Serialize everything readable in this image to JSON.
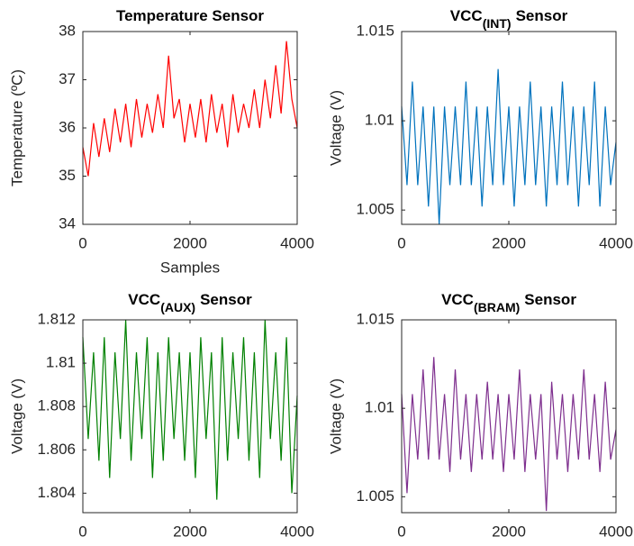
{
  "chart_data": [
    {
      "type": "line",
      "title": "Temperature Sensor",
      "xlabel": "Samples",
      "ylabel": "Temperature (ºC)",
      "xlim": [
        0,
        4000
      ],
      "xticks": [
        0,
        2000,
        4000
      ],
      "ylim": [
        34,
        38
      ],
      "yticks": [
        34,
        35,
        36,
        37,
        38
      ],
      "x": [
        0,
        100,
        200,
        300,
        400,
        500,
        600,
        700,
        800,
        900,
        1000,
        1100,
        1200,
        1300,
        1400,
        1500,
        1600,
        1700,
        1800,
        1900,
        2000,
        2100,
        2200,
        2300,
        2400,
        2500,
        2600,
        2700,
        2800,
        2900,
        3000,
        3100,
        3200,
        3300,
        3400,
        3500,
        3600,
        3700,
        3800,
        3900,
        4000
      ],
      "series": [
        {
          "color": "#ff0000",
          "values": [
            35.6,
            35.0,
            36.1,
            35.4,
            36.2,
            35.5,
            36.4,
            35.7,
            36.5,
            35.6,
            36.6,
            35.8,
            36.5,
            35.9,
            36.7,
            36.0,
            37.5,
            36.2,
            36.6,
            35.7,
            36.5,
            35.8,
            36.6,
            35.7,
            36.7,
            35.9,
            36.5,
            35.6,
            36.7,
            35.9,
            36.5,
            36.0,
            36.8,
            36.0,
            37.0,
            36.2,
            37.3,
            36.3,
            37.8,
            36.6,
            36.0
          ]
        }
      ]
    },
    {
      "type": "line",
      "title": "VCC",
      "title_subscript": "(INT)",
      "title_suffix": "Sensor",
      "ylabel": "Voltage (V)",
      "xlim": [
        0,
        4000
      ],
      "xticks": [
        0,
        2000,
        4000
      ],
      "ylim": [
        1.0042,
        1.015
      ],
      "yticks": [
        1.005,
        1.01,
        1.015
      ],
      "x": [
        0,
        100,
        200,
        300,
        400,
        500,
        600,
        700,
        800,
        900,
        1000,
        1100,
        1200,
        1300,
        1400,
        1500,
        1600,
        1700,
        1800,
        1900,
        2000,
        2100,
        2200,
        2300,
        2400,
        2500,
        2600,
        2700,
        2800,
        2900,
        3000,
        3100,
        3200,
        3300,
        3400,
        3500,
        3600,
        3700,
        3800,
        3900,
        4000
      ],
      "series": [
        {
          "color": "#0072bd",
          "values": [
            1.0108,
            1.0064,
            1.0122,
            1.0064,
            1.0108,
            1.0052,
            1.0108,
            1.0042,
            1.0108,
            1.0064,
            1.0108,
            1.0064,
            1.0122,
            1.0064,
            1.0108,
            1.0052,
            1.0108,
            1.0064,
            1.0129,
            1.0064,
            1.0108,
            1.0052,
            1.0108,
            1.0064,
            1.0122,
            1.0064,
            1.0108,
            1.0052,
            1.0108,
            1.0064,
            1.0122,
            1.0064,
            1.0108,
            1.0052,
            1.0108,
            1.0064,
            1.0122,
            1.0052,
            1.0108,
            1.0064,
            1.0088
          ]
        }
      ]
    },
    {
      "type": "line",
      "title": "VCC",
      "title_subscript": "(AUX)",
      "title_suffix": "Sensor",
      "ylabel": "Voltage (V)",
      "xlim": [
        0,
        4000
      ],
      "xticks": [
        0,
        2000,
        4000
      ],
      "ylim": [
        1.8031,
        1.812
      ],
      "yticks": [
        1.804,
        1.806,
        1.808,
        1.81,
        1.812
      ],
      "x": [
        0,
        100,
        200,
        300,
        400,
        500,
        600,
        700,
        800,
        900,
        1000,
        1100,
        1200,
        1300,
        1400,
        1500,
        1600,
        1700,
        1800,
        1900,
        2000,
        2100,
        2200,
        2300,
        2400,
        2500,
        2600,
        2700,
        2800,
        2900,
        3000,
        3100,
        3200,
        3300,
        3400,
        3500,
        3600,
        3700,
        3800,
        3900,
        4000
      ],
      "series": [
        {
          "color": "#008000",
          "values": [
            1.8112,
            1.8065,
            1.8105,
            1.8055,
            1.8112,
            1.8047,
            1.8105,
            1.8065,
            1.812,
            1.8055,
            1.8105,
            1.8065,
            1.8112,
            1.8047,
            1.8105,
            1.8055,
            1.8112,
            1.8065,
            1.8105,
            1.8055,
            1.8105,
            1.8047,
            1.8112,
            1.8065,
            1.8105,
            1.8037,
            1.8112,
            1.8055,
            1.8105,
            1.8065,
            1.8112,
            1.8055,
            1.8105,
            1.8047,
            1.812,
            1.8065,
            1.8105,
            1.8055,
            1.8112,
            1.804,
            1.8085
          ]
        }
      ]
    },
    {
      "type": "line",
      "title": "VCC",
      "title_subscript": "(BRAM)",
      "title_suffix": "Sensor",
      "ylabel": "Voltage (V)",
      "xlim": [
        0,
        4000
      ],
      "xticks": [
        0,
        2000,
        4000
      ],
      "ylim": [
        1.0041,
        1.015
      ],
      "yticks": [
        1.005,
        1.01,
        1.015
      ],
      "x": [
        0,
        100,
        200,
        300,
        400,
        500,
        600,
        700,
        800,
        900,
        1000,
        1100,
        1200,
        1300,
        1400,
        1500,
        1600,
        1700,
        1800,
        1900,
        2000,
        2100,
        2200,
        2300,
        2400,
        2500,
        2600,
        2700,
        2800,
        2900,
        3000,
        3100,
        3200,
        3300,
        3400,
        3500,
        3600,
        3700,
        3800,
        3900,
        4000
      ],
      "series": [
        {
          "color": "#7e2f8e",
          "values": [
            1.0108,
            1.0052,
            1.0108,
            1.0071,
            1.0122,
            1.0071,
            1.0129,
            1.0071,
            1.0108,
            1.0064,
            1.0122,
            1.0071,
            1.0108,
            1.0064,
            1.0108,
            1.0071,
            1.0115,
            1.0071,
            1.0108,
            1.0064,
            1.0108,
            1.0071,
            1.0122,
            1.0064,
            1.0108,
            1.0071,
            1.0108,
            1.0042,
            1.0115,
            1.0071,
            1.0108,
            1.0064,
            1.0108,
            1.0071,
            1.0122,
            1.0071,
            1.0108,
            1.0064,
            1.0115,
            1.0071,
            1.0088
          ]
        }
      ]
    }
  ]
}
